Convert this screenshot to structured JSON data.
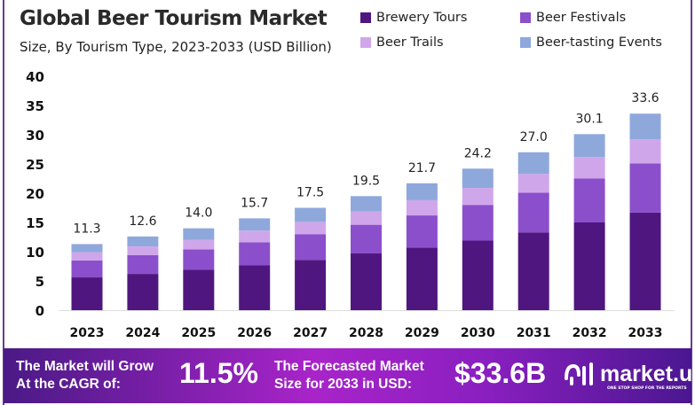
{
  "chart_data": {
    "type": "bar",
    "stacked": true,
    "title": "Global Beer Tourism Market",
    "subtitle": "Size, By Tourism Type, 2023-2033 (USD Billion)",
    "categories": [
      "2023",
      "2024",
      "2025",
      "2026",
      "2027",
      "2028",
      "2029",
      "2030",
      "2031",
      "2032",
      "2033"
    ],
    "series": [
      {
        "name": "Brewery Tours",
        "color": "#4f1680",
        "values": [
          5.6,
          6.2,
          6.9,
          7.7,
          8.6,
          9.7,
          10.7,
          11.9,
          13.3,
          15.0,
          16.7
        ]
      },
      {
        "name": "Beer Festivals",
        "color": "#8b4fcc",
        "values": [
          2.9,
          3.2,
          3.5,
          3.9,
          4.4,
          4.9,
          5.5,
          6.1,
          6.8,
          7.5,
          8.4
        ]
      },
      {
        "name": "Beer Trails",
        "color": "#d0a6ea",
        "values": [
          1.4,
          1.5,
          1.6,
          2.0,
          2.1,
          2.3,
          2.6,
          2.9,
          3.2,
          3.7,
          4.1
        ]
      },
      {
        "name": "Beer-tasting Events",
        "color": "#8ea8dc",
        "values": [
          1.4,
          1.7,
          2.0,
          2.1,
          2.4,
          2.6,
          2.9,
          3.3,
          3.7,
          3.9,
          4.4
        ]
      }
    ],
    "totals": [
      "11.3",
      "12.6",
      "14.0",
      "15.7",
      "17.5",
      "19.5",
      "21.7",
      "24.2",
      "27.0",
      "30.1",
      "33.6"
    ],
    "yticks": [
      "0",
      "5",
      "10",
      "15",
      "20",
      "25",
      "30",
      "35",
      "40"
    ],
    "ylim": [
      0,
      40
    ],
    "grid": false,
    "legend": "top-right"
  },
  "banner": {
    "cagr_label": "The Market will Grow At the CAGR of:",
    "cagr_value": "11.5%",
    "forecast_label": "The Forecasted Market Size for 2033 in USD:",
    "forecast_value": "$33.6B",
    "logo": "market.us",
    "logo_tagline": "ONE STOP SHOP FOR THE REPORTS"
  }
}
